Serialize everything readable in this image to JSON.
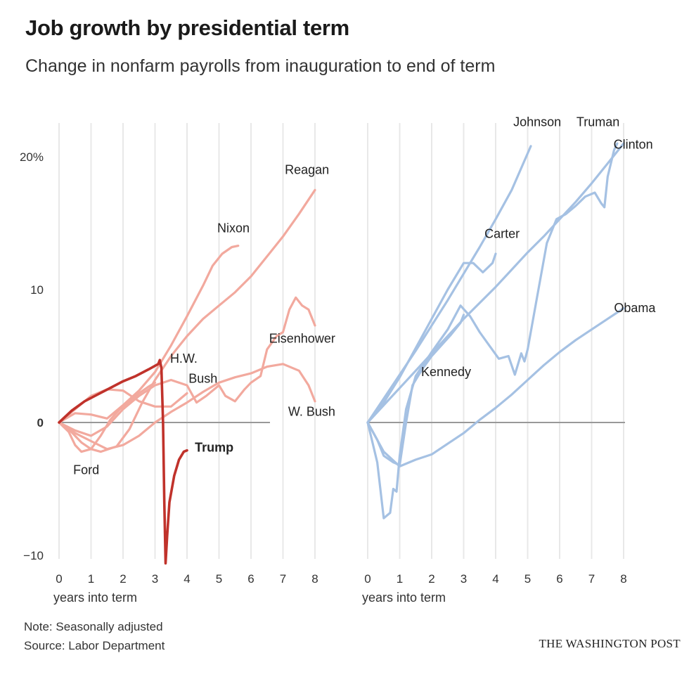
{
  "title": "Job growth by presidential term",
  "subtitle": "Change in nonfarm payrolls from inauguration to end of term",
  "note": "Note: Seasonally adjusted",
  "source": "Source: Labor Department",
  "credit": "THE WASHINGTON POST",
  "colors": {
    "republican": "#f2a99e",
    "trump": "#c0322b",
    "democrat": "#a5c1e3",
    "zero_line": "#999999",
    "grid": "#e8e8e8"
  },
  "chart_data": [
    {
      "type": "line",
      "panel": "left",
      "xlabel": "years into term",
      "ylabel": "",
      "xlim": [
        0,
        8
      ],
      "ylim": [
        -10,
        21.5
      ],
      "x_ticks": [
        "0",
        "1",
        "2",
        "3",
        "4",
        "5",
        "6",
        "7",
        "8"
      ],
      "y_ticks": [
        {
          "value": 20,
          "label": "20%"
        },
        {
          "value": 10,
          "label": "10"
        },
        {
          "value": 0,
          "label": "0"
        },
        {
          "value": -10,
          "label": "−10"
        }
      ],
      "grid": true,
      "series": [
        {
          "name": "Reagan",
          "points": [
            [
              0,
              0
            ],
            [
              0.3,
              -0.5
            ],
            [
              0.7,
              -1.5
            ],
            [
              1.0,
              -2.0
            ],
            [
              1.3,
              -2.2
            ],
            [
              1.8,
              -1.8
            ],
            [
              2.2,
              -0.5
            ],
            [
              2.6,
              1.5
            ],
            [
              3.0,
              3.2
            ],
            [
              3.5,
              5.0
            ],
            [
              4.0,
              6.5
            ],
            [
              4.5,
              7.8
            ],
            [
              5.0,
              8.8
            ],
            [
              5.5,
              9.8
            ],
            [
              6.0,
              11.0
            ],
            [
              6.5,
              12.5
            ],
            [
              7.0,
              14.0
            ],
            [
              7.5,
              15.7
            ],
            [
              8.0,
              17.5
            ]
          ],
          "label": "Reagan",
          "label_at": [
            7.75,
            18.7
          ]
        },
        {
          "name": "Nixon",
          "points": [
            [
              0,
              0
            ],
            [
              0.5,
              0.7
            ],
            [
              1.0,
              0.6
            ],
            [
              1.5,
              0.3
            ],
            [
              2.0,
              1.3
            ],
            [
              2.5,
              2.4
            ],
            [
              3.0,
              3.8
            ],
            [
              3.5,
              5.8
            ],
            [
              4.0,
              8.0
            ],
            [
              4.5,
              10.3
            ],
            [
              4.8,
              11.8
            ],
            [
              5.1,
              12.7
            ],
            [
              5.4,
              13.2
            ],
            [
              5.6,
              13.3
            ]
          ],
          "label": "Nixon",
          "label_at": [
            5.45,
            14.3
          ]
        },
        {
          "name": "Eisenhower",
          "points": [
            [
              0,
              0
            ],
            [
              0.5,
              -0.6
            ],
            [
              1.0,
              -1.0
            ],
            [
              1.5,
              -0.3
            ],
            [
              2.0,
              1.0
            ],
            [
              2.5,
              2.0
            ],
            [
              3.0,
              2.8
            ],
            [
              3.5,
              3.2
            ],
            [
              4.0,
              2.8
            ],
            [
              4.3,
              1.5
            ],
            [
              4.6,
              2.0
            ],
            [
              5.0,
              2.8
            ],
            [
              5.2,
              2.0
            ],
            [
              5.5,
              1.6
            ],
            [
              5.8,
              2.5
            ],
            [
              6.0,
              3.0
            ],
            [
              6.3,
              3.5
            ],
            [
              6.5,
              5.5
            ],
            [
              6.8,
              6.5
            ],
            [
              7.0,
              6.8
            ],
            [
              7.2,
              8.5
            ],
            [
              7.4,
              9.4
            ],
            [
              7.6,
              8.8
            ],
            [
              7.8,
              8.5
            ],
            [
              8.0,
              7.3
            ]
          ],
          "label": "Eisenhower",
          "label_at": [
            7.6,
            6.0
          ]
        },
        {
          "name": "H.W. Bush",
          "points": [
            [
              0,
              0
            ],
            [
              0.5,
              1.0
            ],
            [
              1.0,
              2.0
            ],
            [
              1.5,
              2.5
            ],
            [
              2.0,
              2.4
            ],
            [
              2.5,
              1.6
            ],
            [
              3.0,
              1.2
            ],
            [
              3.5,
              1.2
            ],
            [
              4.0,
              2.2
            ]
          ],
          "label": "H.W.",
          "label_at": [
            3.9,
            4.5
          ]
        },
        {
          "name": "W. Bush",
          "points": [
            [
              0,
              0
            ],
            [
              0.5,
              -0.8
            ],
            [
              1.0,
              -1.4
            ],
            [
              1.5,
              -2.0
            ],
            [
              2.0,
              -1.7
            ],
            [
              2.5,
              -1.0
            ],
            [
              3.0,
              0.0
            ],
            [
              3.5,
              0.8
            ],
            [
              4.0,
              1.5
            ],
            [
              4.5,
              2.3
            ],
            [
              5.0,
              3.0
            ],
            [
              5.5,
              3.4
            ],
            [
              6.0,
              3.7
            ],
            [
              6.5,
              4.2
            ],
            [
              7.0,
              4.4
            ],
            [
              7.5,
              3.9
            ],
            [
              7.8,
              2.8
            ],
            [
              8.0,
              1.6
            ]
          ],
          "label": "W. Bush",
          "label_at": [
            7.9,
            0.5
          ]
        },
        {
          "name": "Ford",
          "points": [
            [
              0,
              0
            ],
            [
              0.3,
              -0.7
            ],
            [
              0.5,
              -1.7
            ],
            [
              0.7,
              -2.2
            ],
            [
              1.0,
              -2.0
            ],
            [
              1.3,
              -1.0
            ],
            [
              1.6,
              0.2
            ],
            [
              1.9,
              1.0
            ],
            [
              2.2,
              1.6
            ],
            [
              2.5,
              2.2
            ],
            [
              2.8,
              2.7
            ],
            [
              3.0,
              3.0
            ]
          ],
          "label": "Ford",
          "label_at": [
            0.85,
            -3.9
          ]
        },
        {
          "name": "Trump",
          "points": [
            [
              0,
              0
            ],
            [
              0.4,
              0.9
            ],
            [
              0.8,
              1.6
            ],
            [
              1.2,
              2.1
            ],
            [
              1.6,
              2.6
            ],
            [
              2.0,
              3.1
            ],
            [
              2.4,
              3.5
            ],
            [
              2.8,
              4.0
            ],
            [
              3.1,
              4.4
            ],
            [
              3.15,
              4.7
            ],
            [
              3.2,
              4.1
            ],
            [
              3.25,
              0.0
            ],
            [
              3.29,
              -6.0
            ],
            [
              3.33,
              -10.6
            ],
            [
              3.38,
              -8.5
            ],
            [
              3.45,
              -6.0
            ],
            [
              3.6,
              -4.0
            ],
            [
              3.75,
              -2.8
            ],
            [
              3.9,
              -2.2
            ],
            [
              4.0,
              -2.1
            ]
          ],
          "label": "Trump",
          "label_at": [
            4.85,
            -2.2
          ]
        }
      ],
      "extra_labels": [
        {
          "text": "Bush",
          "at": [
            4.5,
            3.0
          ]
        }
      ]
    },
    {
      "type": "line",
      "panel": "right",
      "xlabel": "years into term",
      "ylabel": "",
      "xlim": [
        0,
        8
      ],
      "ylim": [
        -10,
        21.5
      ],
      "x_ticks": [
        "0",
        "1",
        "2",
        "3",
        "4",
        "5",
        "6",
        "7",
        "8"
      ],
      "grid": true,
      "series": [
        {
          "name": "Johnson",
          "points": [
            [
              0,
              0
            ],
            [
              0.5,
              1.8
            ],
            [
              1.0,
              3.6
            ],
            [
              1.5,
              5.4
            ],
            [
              2.0,
              7.3
            ],
            [
              2.5,
              9.2
            ],
            [
              3.0,
              11.2
            ],
            [
              3.5,
              13.2
            ],
            [
              4.0,
              15.3
            ],
            [
              4.5,
              17.5
            ],
            [
              5.1,
              20.8
            ]
          ],
          "label": "Johnson",
          "label_at": [
            5.3,
            22.3
          ]
        },
        {
          "name": "Carter",
          "points": [
            [
              0,
              0
            ],
            [
              0.5,
              1.5
            ],
            [
              1.0,
              3.4
            ],
            [
              1.5,
              5.6
            ],
            [
              2.0,
              7.8
            ],
            [
              2.5,
              10.0
            ],
            [
              3.0,
              12.0
            ],
            [
              3.3,
              12.0
            ],
            [
              3.6,
              11.3
            ],
            [
              3.9,
              12.0
            ],
            [
              4.0,
              12.7
            ]
          ],
          "label": "Carter",
          "label_at": [
            4.2,
            13.9
          ]
        },
        {
          "name": "Clinton",
          "points": [
            [
              0,
              0
            ],
            [
              0.5,
              1.3
            ],
            [
              1.0,
              2.6
            ],
            [
              1.5,
              3.9
            ],
            [
              2.0,
              5.2
            ],
            [
              2.5,
              6.5
            ],
            [
              3.0,
              7.8
            ],
            [
              3.5,
              9.0
            ],
            [
              4.0,
              10.2
            ],
            [
              4.5,
              11.5
            ],
            [
              5.0,
              12.8
            ],
            [
              5.5,
              14.0
            ],
            [
              6.0,
              15.3
            ],
            [
              6.5,
              16.6
            ],
            [
              7.0,
              18.0
            ],
            [
              7.5,
              19.5
            ],
            [
              8.0,
              21.0
            ]
          ],
          "label": "Clinton",
          "label_at": [
            8.3,
            20.6
          ]
        },
        {
          "name": "Truman",
          "points": [
            [
              0,
              0
            ],
            [
              0.3,
              -3.0
            ],
            [
              0.5,
              -7.2
            ],
            [
              0.7,
              -6.8
            ],
            [
              0.8,
              -5.0
            ],
            [
              0.9,
              -5.2
            ],
            [
              1.0,
              -2.5
            ],
            [
              1.2,
              1.0
            ],
            [
              1.5,
              3.5
            ],
            [
              2.0,
              5.3
            ],
            [
              2.5,
              7.0
            ],
            [
              2.9,
              8.8
            ],
            [
              3.2,
              8.0
            ],
            [
              3.5,
              6.8
            ],
            [
              3.8,
              5.8
            ],
            [
              4.1,
              4.8
            ],
            [
              4.4,
              5.0
            ],
            [
              4.6,
              3.6
            ],
            [
              4.8,
              5.2
            ],
            [
              4.9,
              4.6
            ],
            [
              5.0,
              5.5
            ],
            [
              5.3,
              9.5
            ],
            [
              5.6,
              13.5
            ],
            [
              5.9,
              15.3
            ],
            [
              6.2,
              15.7
            ],
            [
              6.5,
              16.3
            ],
            [
              6.8,
              17.0
            ],
            [
              7.1,
              17.3
            ],
            [
              7.3,
              16.5
            ],
            [
              7.4,
              16.2
            ],
            [
              7.5,
              18.5
            ],
            [
              7.7,
              20.5
            ],
            [
              7.8,
              21.0
            ]
          ],
          "label": "Truman",
          "label_at": [
            7.2,
            22.3
          ]
        },
        {
          "name": "Kennedy",
          "points": [
            [
              0,
              0
            ],
            [
              0.3,
              -1.3
            ],
            [
              0.5,
              -2.5
            ],
            [
              0.8,
              -3.0
            ],
            [
              1.0,
              -3.2
            ],
            [
              1.2,
              0.0
            ],
            [
              1.4,
              2.8
            ],
            [
              1.7,
              4.0
            ],
            [
              2.0,
              5.0
            ],
            [
              2.3,
              5.8
            ],
            [
              2.6,
              6.6
            ],
            [
              2.9,
              7.5
            ],
            [
              3.0,
              8.1
            ]
          ],
          "label": "Kennedy",
          "label_at": [
            2.45,
            3.5
          ]
        },
        {
          "name": "Obama",
          "points": [
            [
              0,
              0
            ],
            [
              0.5,
              -2.2
            ],
            [
              1.0,
              -3.3
            ],
            [
              1.5,
              -2.8
            ],
            [
              2.0,
              -2.4
            ],
            [
              2.5,
              -1.6
            ],
            [
              3.0,
              -0.8
            ],
            [
              3.5,
              0.2
            ],
            [
              4.0,
              1.1
            ],
            [
              4.5,
              2.1
            ],
            [
              5.0,
              3.2
            ],
            [
              5.5,
              4.3
            ],
            [
              6.0,
              5.3
            ],
            [
              6.5,
              6.2
            ],
            [
              7.0,
              7.0
            ],
            [
              7.5,
              7.8
            ],
            [
              8.0,
              8.6
            ]
          ],
          "label": "Obama",
          "label_at": [
            8.35,
            8.3
          ]
        }
      ]
    }
  ]
}
